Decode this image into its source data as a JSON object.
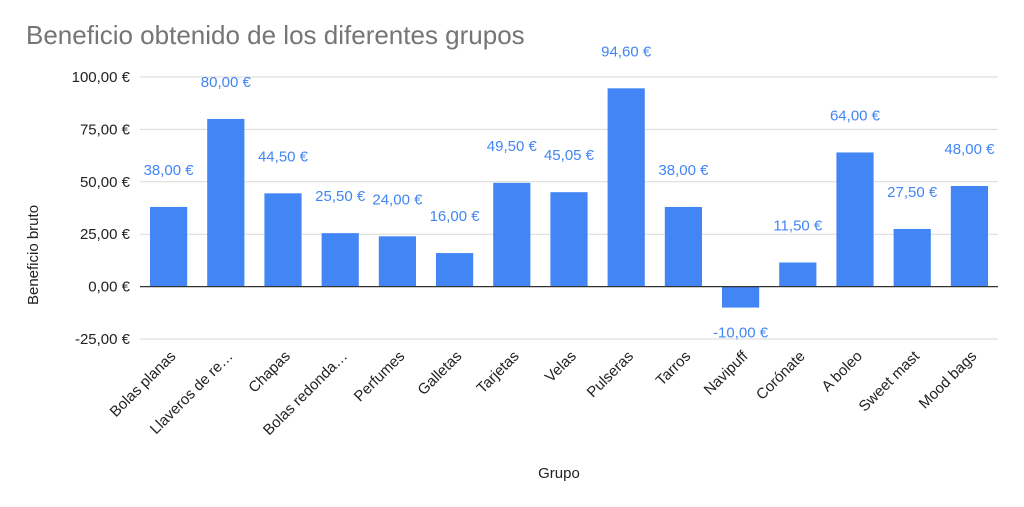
{
  "chart_data": {
    "type": "bar",
    "title": "Beneficio obtenido de los diferentes grupos",
    "xlabel": "Grupo",
    "ylabel": "Beneficio bruto",
    "categories": [
      "Bolas planas",
      "Llaveros de re…",
      "Chapas",
      "Bolas redonda…",
      "Perfumes",
      "Galletas",
      "Tarjetas",
      "Velas",
      "Pulseras",
      "Tarros",
      "Navipuff",
      "Corónate",
      "A boleo",
      "Sweet mast",
      "Mood bags"
    ],
    "values": [
      38.0,
      80.0,
      44.5,
      25.5,
      24.0,
      16.0,
      49.5,
      45.05,
      94.6,
      38.0,
      -10.0,
      11.5,
      64.0,
      27.5,
      48.0
    ],
    "data_labels": [
      "38,00 €",
      "80,00 €",
      "44,50 €",
      "25,50 €",
      "24,00 €",
      "16,00 €",
      "49,50 €",
      "45,05 €",
      "94,60 €",
      "38,00 €",
      "-10,00 €",
      "11,50 €",
      "64,00 €",
      "27,50 €",
      "48,00 €"
    ],
    "yticks": [
      100,
      75,
      50,
      25,
      0,
      -25
    ],
    "ytick_labels": [
      "100,00 €",
      "75,00 €",
      "50,00 €",
      "25,00 €",
      "0,00 €",
      "-25,00 €"
    ],
    "ylim": [
      -25,
      100
    ],
    "grid": true,
    "legend": "none",
    "colors": {
      "bar": "#4285f4",
      "label": "#4285f4",
      "grid": "#d9d9d9",
      "zero_line": "#333333",
      "title": "#757575"
    }
  }
}
